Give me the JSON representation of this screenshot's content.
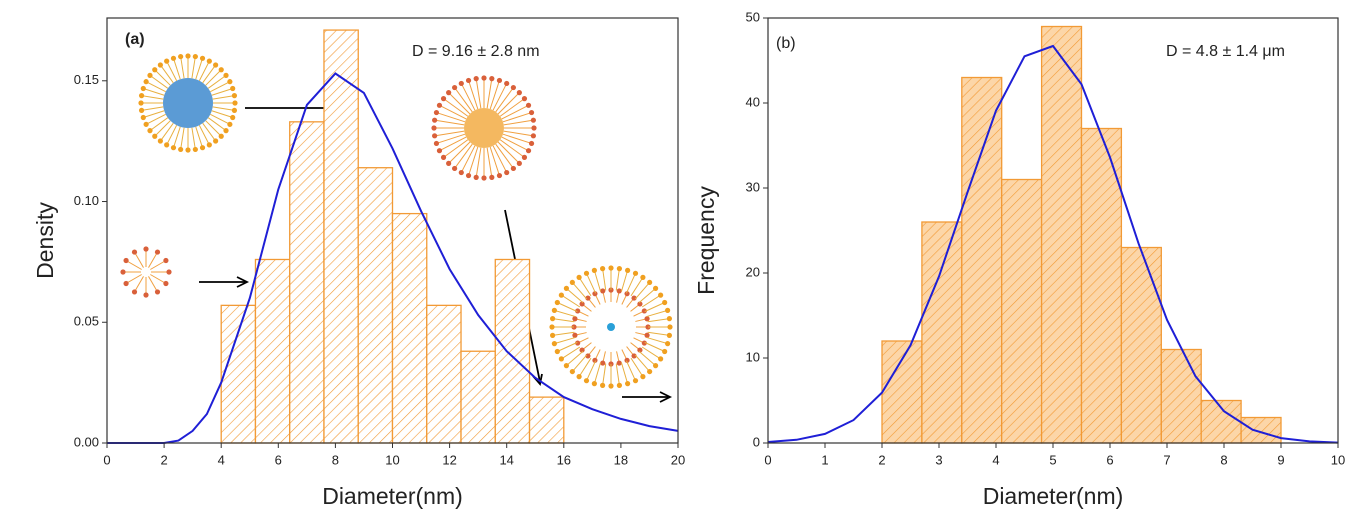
{
  "chart_data": [
    {
      "type": "histogram",
      "panel_label": "(a)",
      "annotation": "D = 9.16 ± 2.8 nm",
      "xlabel": "Diameter(nm)",
      "ylabel": "Density",
      "bins": [
        4,
        5.2,
        6.4,
        7.6,
        8.8,
        10,
        11.2,
        12.4,
        13.6,
        14.8,
        16
      ],
      "values": [
        0.057,
        0.076,
        0.133,
        0.171,
        0.114,
        0.095,
        0.057,
        0.038,
        0.076,
        0.019
      ],
      "color": "#f29a35",
      "fill": "#ffffff",
      "curve": {
        "color": "#1f1fd6",
        "x": [
          0,
          2,
          2.5,
          3,
          3.5,
          4,
          5,
          6,
          7,
          8,
          9,
          10,
          11,
          12,
          13,
          14,
          15,
          16,
          17,
          18,
          19,
          20
        ],
        "y": [
          0,
          0,
          0.001,
          0.005,
          0.012,
          0.025,
          0.06,
          0.105,
          0.14,
          0.153,
          0.145,
          0.122,
          0.096,
          0.072,
          0.053,
          0.038,
          0.027,
          0.019,
          0.014,
          0.01,
          0.007,
          0.005
        ]
      },
      "xlim": [
        0,
        20
      ],
      "xticks": [
        0,
        2,
        4,
        6,
        8,
        10,
        12,
        14,
        16,
        18,
        20
      ],
      "ylim": [
        0,
        0.176
      ],
      "yticks": [
        {
          "value": 0,
          "label": "0.00"
        },
        {
          "value": 0.05,
          "label": "0.05"
        },
        {
          "value": 0.1,
          "label": "0.10"
        },
        {
          "value": 0.15,
          "label": "0.15"
        }
      ]
    },
    {
      "type": "histogram",
      "panel_label": "(b)",
      "annotation": "D = 4.8 ± 1.4 μm",
      "xlabel": "Diameter(nm)",
      "ylabel": "Frequency",
      "bins": [
        2,
        2.7,
        3.4,
        4.1,
        4.8,
        5.5,
        6.2,
        6.9,
        7.6,
        8.3,
        9
      ],
      "values": [
        12,
        26,
        43,
        31,
        49,
        37,
        23,
        11,
        5,
        3
      ],
      "color": "#f29a35",
      "fill": "#fcd6a8",
      "curve": {
        "color": "#1f1fd6",
        "x": [
          0,
          0.5,
          1,
          1.5,
          2,
          2.5,
          3,
          3.5,
          4,
          4.5,
          5,
          5.5,
          6,
          6.5,
          7,
          7.5,
          8,
          8.5,
          9,
          9.5,
          10
        ],
        "y": [
          0.12,
          0.38,
          1.07,
          2.69,
          5.93,
          11.5,
          19.6,
          29.5,
          39.1,
          45.5,
          46.7,
          42.2,
          33.6,
          23.5,
          14.5,
          7.85,
          3.74,
          1.57,
          0.58,
          0.19,
          0.05
        ]
      },
      "xlim": [
        0,
        10
      ],
      "xticks": [
        0,
        1,
        2,
        3,
        4,
        5,
        6,
        7,
        8,
        9,
        10
      ],
      "ylim": [
        0,
        50
      ],
      "yticks": [
        0,
        10,
        20,
        30,
        40,
        50
      ]
    }
  ]
}
